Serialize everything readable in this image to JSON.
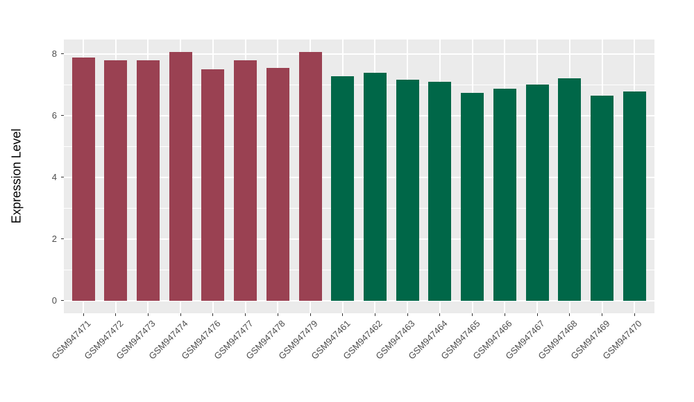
{
  "chart_data": {
    "type": "bar",
    "title": "",
    "xlabel": "",
    "ylabel": "Expression Level",
    "ylim": [
      0,
      8.47
    ],
    "yticks": [
      0,
      2,
      4,
      6,
      8
    ],
    "yminor": [
      1,
      3,
      5,
      7
    ],
    "grid": "on",
    "legend": "none",
    "panel_bg": "#ebebeb",
    "grid_color": "#ffffff",
    "categories": [
      "GSM947471",
      "GSM947472",
      "GSM947473",
      "GSM947474",
      "GSM947476",
      "GSM947477",
      "GSM947478",
      "GSM947479",
      "GSM947461",
      "GSM947462",
      "GSM947463",
      "GSM947464",
      "GSM947465",
      "GSM947466",
      "GSM947467",
      "GSM947468",
      "GSM947469",
      "GSM947470"
    ],
    "values": [
      7.89,
      7.8,
      7.8,
      8.07,
      7.5,
      7.8,
      7.55,
      8.07,
      7.27,
      7.4,
      7.16,
      7.1,
      6.75,
      6.87,
      7.01,
      7.21,
      6.64,
      6.78
    ],
    "bar_colors": [
      "#9a4152",
      "#9a4152",
      "#9a4152",
      "#9a4152",
      "#9a4152",
      "#9a4152",
      "#9a4152",
      "#9a4152",
      "#006748",
      "#006748",
      "#006748",
      "#006748",
      "#006748",
      "#006748",
      "#006748",
      "#006748",
      "#006748",
      "#006748"
    ],
    "group_colors": {
      "left_group": "#9a4152",
      "right_group": "#006748"
    }
  }
}
